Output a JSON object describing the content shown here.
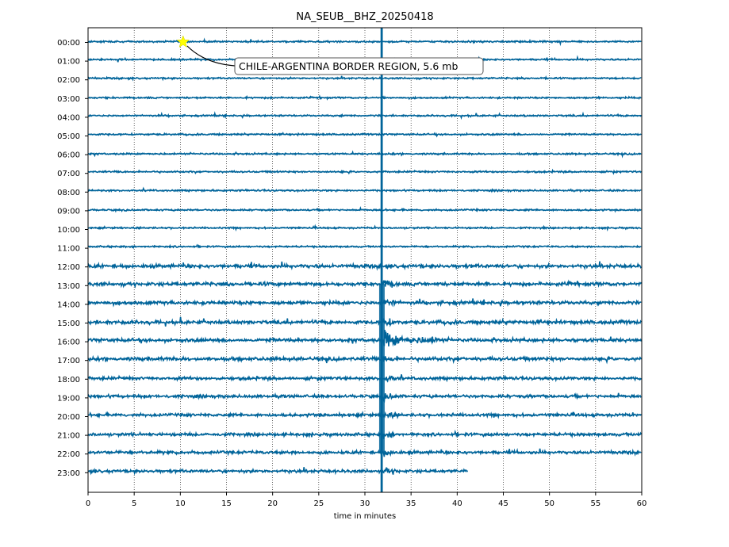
{
  "chart_data": {
    "type": "line",
    "title": "NA_SEUB__BHZ_20250418",
    "xlabel": "time in minutes",
    "ylabel": "",
    "xlim": [
      0,
      60
    ],
    "x_ticks": [
      0,
      5,
      10,
      15,
      20,
      25,
      30,
      35,
      40,
      45,
      50,
      55,
      60
    ],
    "y_ticks": [
      "00:00",
      "01:00",
      "02:00",
      "03:00",
      "04:00",
      "05:00",
      "06:00",
      "07:00",
      "08:00",
      "09:00",
      "10:00",
      "11:00",
      "12:00",
      "13:00",
      "14:00",
      "15:00",
      "16:00",
      "17:00",
      "18:00",
      "19:00",
      "20:00",
      "21:00",
      "22:00",
      "23:00"
    ],
    "grid": "vertical dotted",
    "trace_color": "#00649a",
    "last_trace_end_minute": 41.2,
    "event": {
      "label": "CHILE-ARGENTINA BORDER REGION, 5.6 mb",
      "time_minute": 10.3,
      "hour_row": "00:00",
      "marker": "yellow star",
      "marker_color": "#ffff00"
    },
    "arrival": {
      "start_minute": 31.8,
      "peak_hours": [
        "00:00",
        "23:00"
      ]
    }
  }
}
